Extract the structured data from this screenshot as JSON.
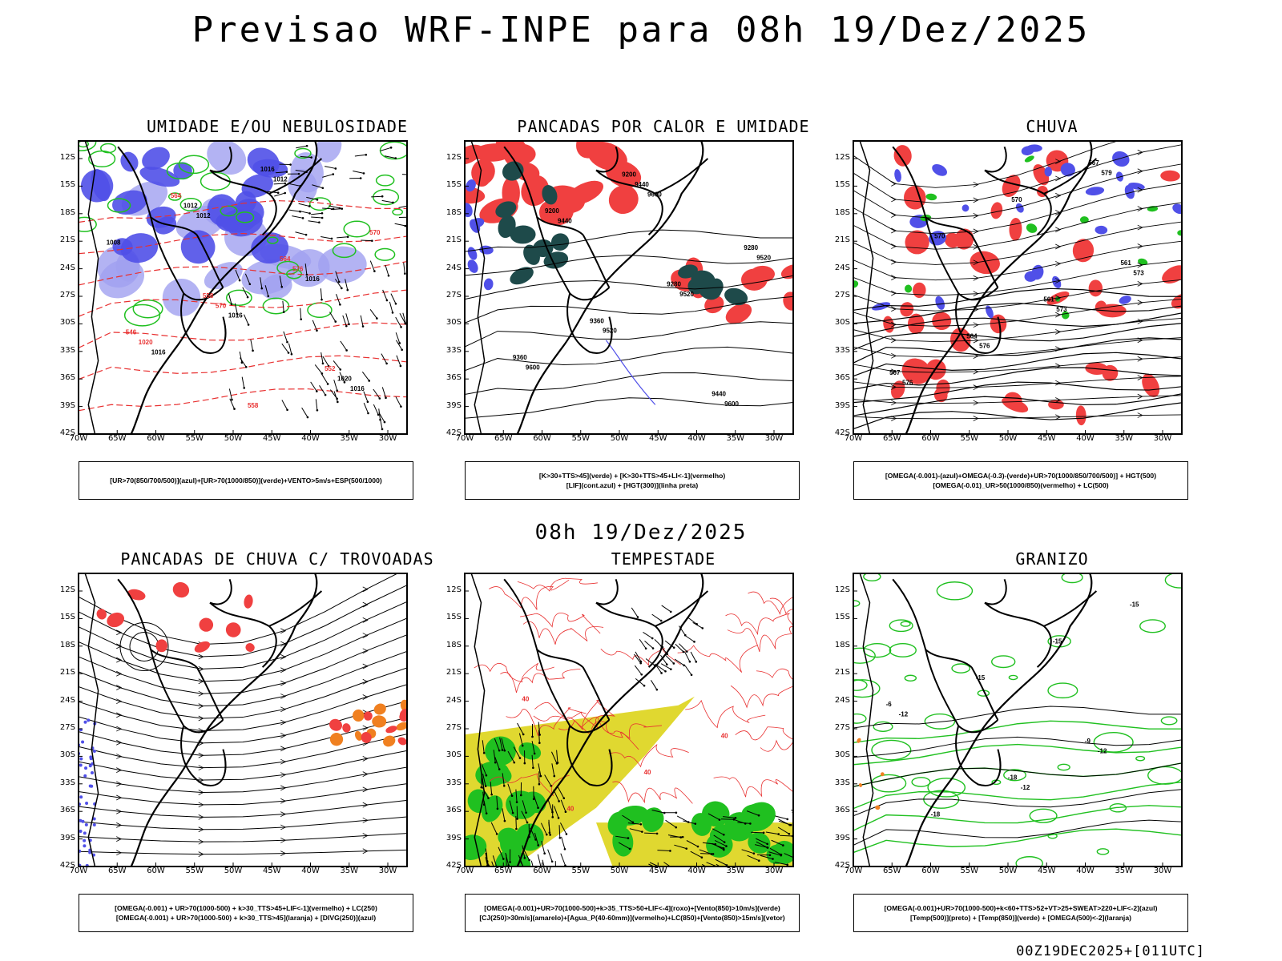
{
  "title": "Previsao WRF-INPE  para 08h 19/Dez/2025",
  "mid_date": "08h 19/Dez/2025",
  "footer": "00Z19DEC2025+[011UTC]",
  "axes": {
    "lat_ticks": [
      "12S",
      "15S",
      "18S",
      "21S",
      "24S",
      "27S",
      "30S",
      "33S",
      "36S",
      "39S",
      "42S"
    ],
    "lon_ticks": [
      "70W",
      "65W",
      "60W",
      "55W",
      "50W",
      "45W",
      "40W",
      "35W",
      "30W"
    ]
  },
  "colors": {
    "blue": "#5050e8",
    "light_blue": "#a0a0f0",
    "green": "#20c020",
    "red": "#f04040",
    "dark_teal": "#1e4a4a",
    "yellow": "#e0d830",
    "orange": "#f08020",
    "contour_red": "#e83030"
  },
  "panels": [
    {
      "id": "umidade",
      "title": "UMIDADE E/OU NEBULOSIDADE",
      "legend": [
        "[UR>70(850/700/500)](azul)+[UR>70(1000/850)](verde)+VENTO>5m/s+ESP(500/1000)"
      ],
      "contour_labels": [
        "1012",
        "1012",
        "1016",
        "1016",
        "1016",
        "1016",
        "1008",
        "1012",
        "1016",
        "1020",
        "1020",
        "570",
        "576",
        "570",
        "564",
        "558",
        "552",
        "546",
        "558",
        "564"
      ]
    },
    {
      "id": "pancadas_calor",
      "title": "PANCADAS POR CALOR E UMIDADE",
      "legend": [
        "[K>30+TTS>45](verde) + [K>30+TTS>45+LI<-1](vermelho)",
        "[LIF](cont.azul) + [HGT(300)](linha preta)"
      ],
      "contour_labels": [
        "9600",
        "9600",
        "9600",
        "9520",
        "9520",
        "9520",
        "9440",
        "9440",
        "9440",
        "9360",
        "9360",
        "9280",
        "9280",
        "9200",
        "9200"
      ]
    },
    {
      "id": "chuva",
      "title": "CHUVA",
      "legend": [
        "[OMEGA(-0.001)-(azul)+OMEGA(-0.3)-(verde)+UR>70(1000/850/700/500)] + HGT(500)",
        "[OMEGA(-0.01)_UR>50(1000/850)(vermelho) + LC(500)"
      ],
      "contour_labels": [
        "579",
        "576",
        "576",
        "573",
        "573",
        "570",
        "570",
        "567",
        "567",
        "564",
        "561",
        "561"
      ]
    },
    {
      "id": "trovoadas",
      "title": "PANCADAS DE CHUVA C/ TROVOADAS",
      "legend": [
        "[OMEGA(-0.001) + UR>70(1000-500) + k>30_TTS>45+LIF<-1](vermelho) + LC(250)",
        "[OMEGA(-0.001) + UR>70(1000-500) + k>30_TTS>45](laranja) + [DIVG(250)](azul)"
      ],
      "contour_labels": []
    },
    {
      "id": "tempestade",
      "title": "TEMPESTADE",
      "legend": [
        "[OMEGA(-0.001)+UR>70(1000-500)+k>35_TTS>50+LIF<-4](roxo)+[Vento(850)>10m/s](verde)",
        "[CJ(250)>30m/s](amarelo)+[Agua_P(40-60mm)](vermelho)+LC(850)+[Vento(850)>15m/s](vetor)"
      ],
      "contour_labels": [
        "40",
        "40",
        "40",
        "40"
      ]
    },
    {
      "id": "granizo",
      "title": "GRANIZO",
      "legend": [
        "[OMEGA(-0.001)+UR>70(1000-500)+k<60+TTS>52+VT>25+SWEAT>220+LIF<-2](azul)",
        "[Temp(500)](preto) + [Temp(850)](verde) + [OMEGA(500)<-2](laranja)"
      ],
      "contour_labels": [
        "-12",
        "-12",
        "-12",
        "-15",
        "-15",
        "-15",
        "-18",
        "-18",
        "-9",
        "-6"
      ]
    }
  ]
}
